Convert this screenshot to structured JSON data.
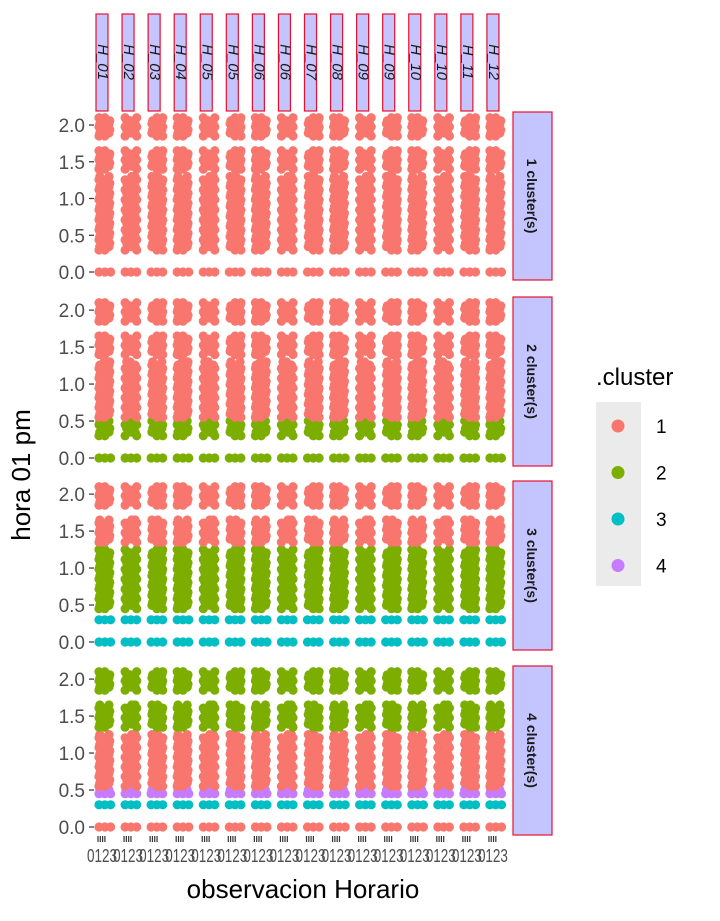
{
  "chart_data": {
    "type": "scatter",
    "xlabel": "observacion Horario",
    "ylabel": "hora 01 pm",
    "ylim": [
      0,
      2.15
    ],
    "yticks": [
      0.0,
      0.5,
      1.0,
      1.5,
      2.0
    ],
    "ytick_labels": [
      "0.0",
      "0.5",
      "1.0",
      "1.5",
      "2.0"
    ],
    "xtick_label": "0123",
    "column_facets": [
      "H_01",
      "H_02",
      "H_03",
      "H_04",
      "H_05",
      "H_05",
      "H_06",
      "H_06",
      "H_07",
      "H_08",
      "H_09",
      "H_09",
      "H_10",
      "H_10",
      "H_11",
      "H_12"
    ],
    "row_facets": [
      "1 cluster(s)",
      "2 cluster(s)",
      "3 cluster(s)",
      "4 cluster(s)"
    ],
    "legend": {
      "title": ".cluster",
      "position": "right",
      "entries": [
        {
          "label": "1",
          "color": "#F8766D"
        },
        {
          "label": "2",
          "color": "#7CAE00"
        },
        {
          "label": "3",
          "color": "#00BFC4"
        },
        {
          "label": "4",
          "color": "#C77CFF"
        }
      ]
    },
    "panels": [
      {
        "row": "1 cluster(s)",
        "bands": [
          {
            "cluster": 1,
            "from": 0.0,
            "to": 0.02
          },
          {
            "cluster": 1,
            "from": 0.3,
            "to": 1.3
          },
          {
            "cluster": 1,
            "from": 1.4,
            "to": 1.65
          },
          {
            "cluster": 1,
            "from": 1.85,
            "to": 2.1
          }
        ]
      },
      {
        "row": "2 cluster(s)",
        "bands": [
          {
            "cluster": 2,
            "from": 0.0,
            "to": 0.02
          },
          {
            "cluster": 2,
            "from": 0.3,
            "to": 0.5
          },
          {
            "cluster": 1,
            "from": 0.55,
            "to": 1.3
          },
          {
            "cluster": 1,
            "from": 1.4,
            "to": 1.65
          },
          {
            "cluster": 1,
            "from": 1.85,
            "to": 2.1
          }
        ]
      },
      {
        "row": "3 cluster(s)",
        "bands": [
          {
            "cluster": 3,
            "from": 0.0,
            "to": 0.02
          },
          {
            "cluster": 3,
            "from": 0.3,
            "to": 0.32
          },
          {
            "cluster": 2,
            "from": 0.45,
            "to": 1.25
          },
          {
            "cluster": 1,
            "from": 1.35,
            "to": 1.65
          },
          {
            "cluster": 1,
            "from": 1.85,
            "to": 2.1
          }
        ]
      },
      {
        "row": "4 cluster(s)",
        "bands": [
          {
            "cluster": 1,
            "from": 0.0,
            "to": 0.02
          },
          {
            "cluster": 3,
            "from": 0.3,
            "to": 0.32
          },
          {
            "cluster": 4,
            "from": 0.45,
            "to": 0.5
          },
          {
            "cluster": 1,
            "from": 0.55,
            "to": 1.25
          },
          {
            "cluster": 2,
            "from": 1.35,
            "to": 1.65
          },
          {
            "cluster": 2,
            "from": 1.85,
            "to": 2.1
          }
        ]
      }
    ]
  }
}
